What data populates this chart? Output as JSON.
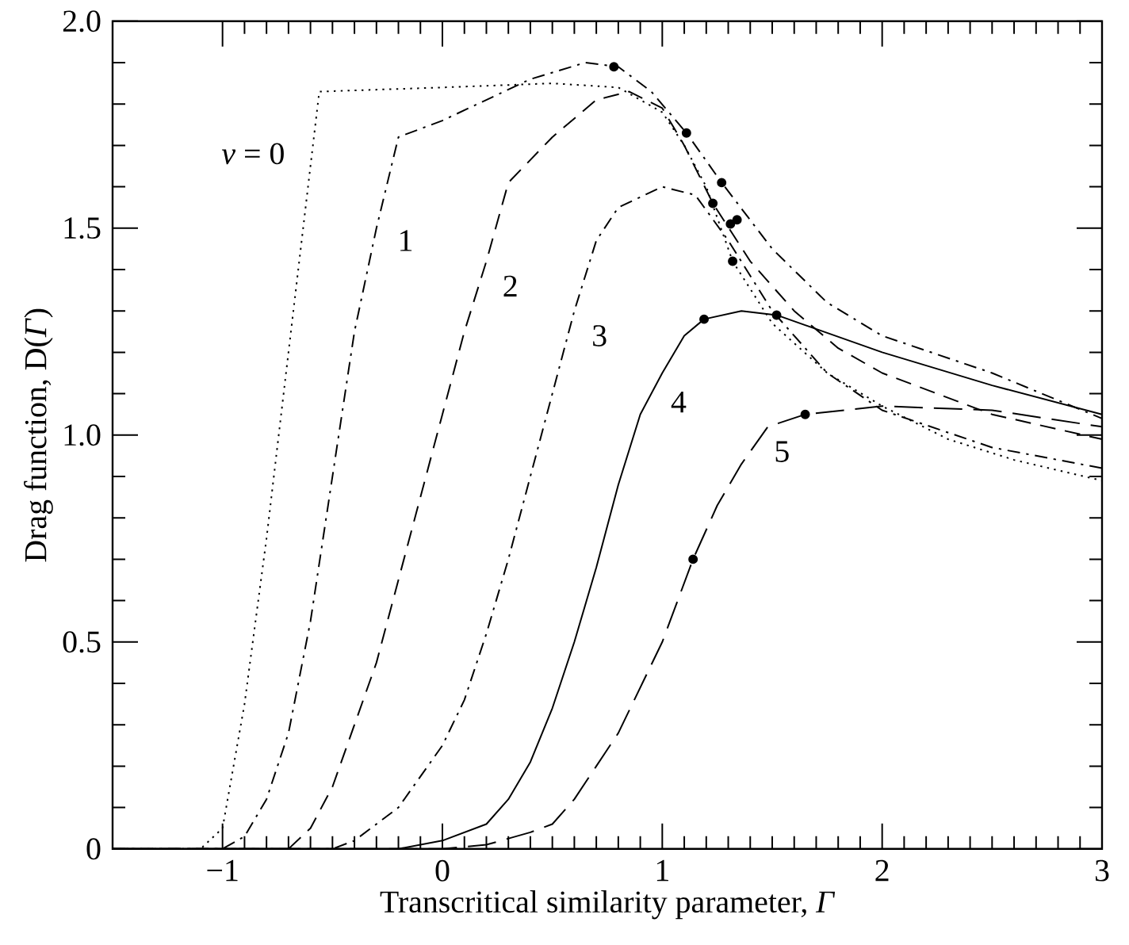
{
  "chart_data": {
    "type": "line",
    "xlabel": "Transcritical similarity parameter, *Γ*",
    "ylabel": "Drag function, D(*Γ*)",
    "xlim": [
      -1.5,
      3
    ],
    "ylim": [
      0,
      2
    ],
    "xticks": [
      {
        "value": -1,
        "label": "−1"
      },
      0,
      1,
      2,
      3
    ],
    "yticks": [
      0,
      0.5,
      {
        "value": 1,
        "label": "1.0"
      },
      1.5,
      {
        "value": 2,
        "label": "2.0"
      }
    ],
    "grid": false,
    "legend": false,
    "series": [
      {
        "name": "*ν* = 0",
        "color": "#000000",
        "line_style": "dotted",
        "x": [
          -1.5,
          -1.1,
          -1.0,
          -0.9,
          -0.8,
          -0.7,
          -0.6,
          -0.56,
          0,
          0.5,
          0.8,
          1.0,
          1.1,
          1.2,
          1.32,
          1.5,
          1.75,
          2.0,
          2.3,
          2.6,
          3.0
        ],
        "values": [
          0,
          0,
          0.05,
          0.35,
          0.75,
          1.2,
          1.65,
          1.83,
          1.84,
          1.85,
          1.84,
          1.78,
          1.7,
          1.6,
          1.42,
          1.27,
          1.15,
          1.07,
          0.99,
          0.94,
          0.89
        ]
      },
      {
        "name": "1",
        "color": "#000000",
        "line_style": "dashdot",
        "x": [
          -1.5,
          -1.0,
          -0.9,
          -0.8,
          -0.7,
          -0.6,
          -0.5,
          -0.4,
          -0.3,
          -0.2,
          0,
          0.2,
          0.4,
          0.65,
          0.8,
          0.95,
          1.11,
          1.27,
          1.5,
          1.75,
          2.0,
          2.5,
          3.0
        ],
        "values": [
          0,
          0,
          0.03,
          0.12,
          0.28,
          0.55,
          0.9,
          1.25,
          1.5,
          1.72,
          1.76,
          1.81,
          1.86,
          1.9,
          1.89,
          1.83,
          1.73,
          1.61,
          1.45,
          1.32,
          1.24,
          1.15,
          1.04
        ]
      },
      {
        "name": "2",
        "color": "#000000",
        "line_style": "dashed",
        "x": [
          -1.5,
          -0.7,
          -0.6,
          -0.5,
          -0.4,
          -0.3,
          -0.2,
          -0.1,
          0,
          0.1,
          0.2,
          0.3,
          0.5,
          0.7,
          0.85,
          1.0,
          1.1,
          1.23,
          1.4,
          1.6,
          1.8,
          2.0,
          2.5,
          3.0
        ],
        "values": [
          0,
          0,
          0.05,
          0.15,
          0.3,
          0.45,
          0.65,
          0.85,
          1.05,
          1.25,
          1.42,
          1.61,
          1.72,
          1.81,
          1.83,
          1.79,
          1.7,
          1.56,
          1.42,
          1.3,
          1.21,
          1.15,
          1.05,
          0.99
        ]
      },
      {
        "name": "3",
        "color": "#000000",
        "line_style": "dashdot",
        "x": [
          -1.5,
          -0.5,
          -0.4,
          -0.2,
          0,
          0.1,
          0.2,
          0.3,
          0.4,
          0.5,
          0.6,
          0.7,
          0.8,
          1.0,
          1.15,
          1.3,
          1.5,
          1.75,
          2.0,
          2.5,
          3.0
        ],
        "values": [
          0,
          0,
          0.02,
          0.1,
          0.25,
          0.36,
          0.52,
          0.7,
          0.9,
          1.1,
          1.3,
          1.47,
          1.55,
          1.6,
          1.58,
          1.47,
          1.3,
          1.15,
          1.06,
          0.97,
          0.92
        ]
      },
      {
        "name": "4",
        "color": "#000000",
        "line_style": "solid",
        "x": [
          -1.5,
          -0.2,
          0,
          0.1,
          0.2,
          0.3,
          0.4,
          0.5,
          0.6,
          0.7,
          0.8,
          0.9,
          1.0,
          1.1,
          1.19,
          1.36,
          1.52,
          2.0,
          2.5,
          3.0
        ],
        "values": [
          0,
          0,
          0.02,
          0.04,
          0.06,
          0.12,
          0.21,
          0.34,
          0.5,
          0.68,
          0.88,
          1.05,
          1.15,
          1.24,
          1.28,
          1.3,
          1.29,
          1.2,
          1.12,
          1.05
        ]
      },
      {
        "name": "5",
        "color": "#000000",
        "line_style": "longdash",
        "x": [
          -1.5,
          0,
          0.2,
          0.4,
          0.5,
          0.6,
          0.7,
          0.8,
          0.9,
          1.0,
          1.14,
          1.25,
          1.36,
          1.48,
          1.65,
          2.0,
          2.5,
          3.0
        ],
        "values": [
          0,
          0,
          0.01,
          0.04,
          0.06,
          0.12,
          0.2,
          0.28,
          0.39,
          0.5,
          0.7,
          0.83,
          0.93,
          1.02,
          1.05,
          1.07,
          1.06,
          1.02
        ]
      },
      {
        "type": "scatter",
        "marker": "circle",
        "color": "#000000",
        "x": [
          0.78,
          1.11,
          1.27,
          1.23,
          1.31,
          1.34,
          1.32,
          1.19,
          1.52,
          1.65,
          1.14
        ],
        "values": [
          1.89,
          1.73,
          1.61,
          1.56,
          1.51,
          1.52,
          1.42,
          1.28,
          1.29,
          1.05,
          0.7
        ]
      }
    ]
  }
}
